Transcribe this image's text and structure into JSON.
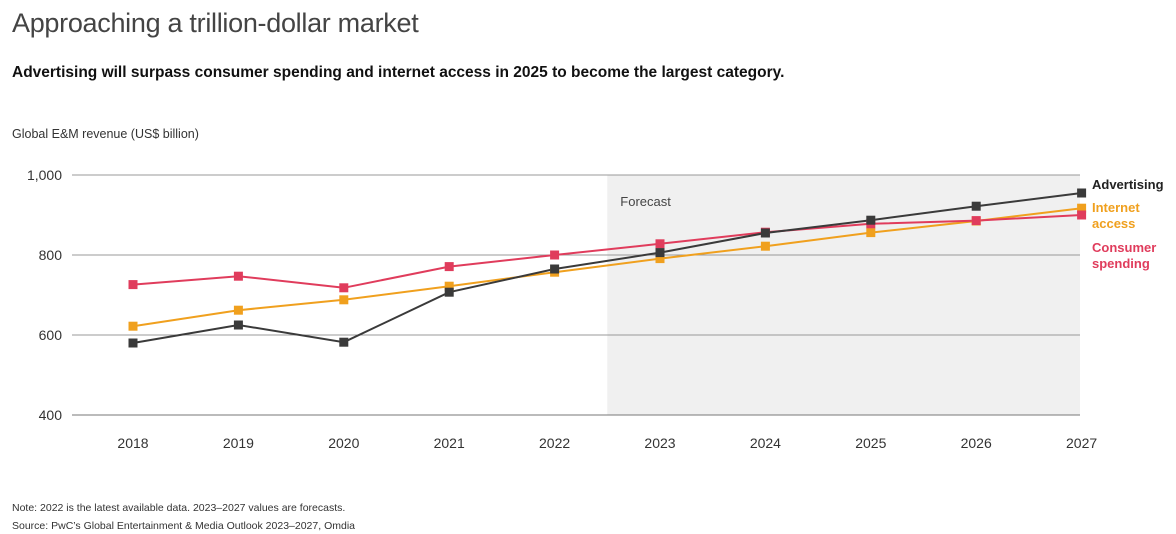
{
  "title": "Approaching a trillion-dollar market",
  "subtitle": "Advertising will surpass consumer spending and internet access in 2025 to become the largest category.",
  "unit_label": "Global E&M revenue (US$ billion)",
  "notes": {
    "note": "Note: 2022 is the latest available data. 2023–2027 values are forecasts.",
    "source": "Source: PwC’s Global Entertainment & Media Outlook 2023–2027, Omdia"
  },
  "chart_data": {
    "type": "line",
    "x": [
      "2018",
      "2019",
      "2020",
      "2021",
      "2022",
      "2023",
      "2024",
      "2025",
      "2026",
      "2027"
    ],
    "ylim": [
      400,
      1000
    ],
    "yticks": [
      400,
      600,
      800,
      1000
    ],
    "ytick_labels": [
      "400",
      "600",
      "800",
      "1,000"
    ],
    "grid": true,
    "forecast_label": "Forecast",
    "forecast_start": "2023",
    "series": [
      {
        "name": "Advertising",
        "label_lines": [
          "Advertising"
        ],
        "color": "#3a3a3a",
        "label_color": "#222222",
        "values": [
          580,
          625,
          582,
          707,
          765,
          806,
          855,
          887,
          922,
          955
        ]
      },
      {
        "name": "Internet access",
        "label_lines": [
          "Internet",
          "access"
        ],
        "color": "#f0a01e",
        "label_color": "#f0a01e",
        "values": [
          622,
          662,
          688,
          722,
          757,
          791,
          822,
          856,
          885,
          917
        ]
      },
      {
        "name": "Consumer spending",
        "label_lines": [
          "Consumer",
          "spending"
        ],
        "color": "#e03c5c",
        "label_color": "#e03c5c",
        "values": [
          726,
          747,
          718,
          771,
          800,
          828,
          857,
          878,
          886,
          900
        ]
      }
    ]
  }
}
